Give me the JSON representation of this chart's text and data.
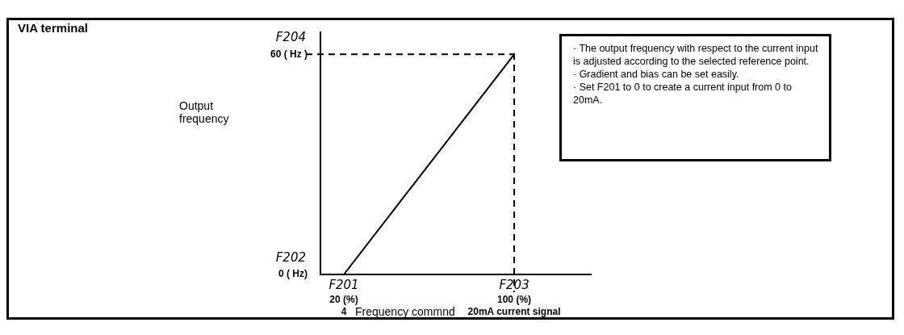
{
  "chart_data": {
    "type": "line",
    "title": "VIA terminal",
    "xlabel": "Frequency commnd",
    "ylabel": "Output frequency",
    "x": [
      20,
      100
    ],
    "series": [
      {
        "color": "#000000",
        "values": [
          0,
          60
        ]
      }
    ],
    "xlim": [
      9,
      136
    ],
    "ylim": [
      0,
      66
    ],
    "xticks": [
      {
        "value": 20,
        "label": "20 (%)"
      },
      {
        "value": 100,
        "label": "100 (%)"
      }
    ],
    "yticks": [
      {
        "value": 0,
        "label": "0 ( Hz)"
      },
      {
        "value": 60,
        "label": "60 ( Hz )"
      }
    ],
    "ref_lines": [
      {
        "axis": "y",
        "value": 60,
        "line_style": "dashed"
      },
      {
        "axis": "x",
        "value": 100,
        "line_style": "dashed"
      }
    ],
    "annotations": [
      "F201",
      "4",
      "F203",
      "20mA current signal",
      "F202",
      "F204",
      "· The output frequency with respect to the current input is adjusted according to the selected reference point.\n· Gradient and bias can be set easily.\n· Set F201 to 0 to create a current input from 0 to 20mA."
    ],
    "grid": false,
    "legend": false,
    "marker": "none",
    "line_style": "solid"
  }
}
